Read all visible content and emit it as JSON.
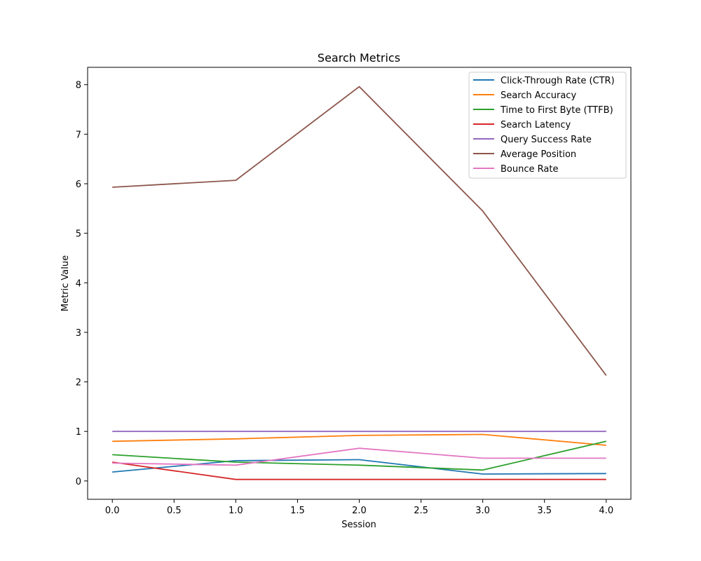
{
  "chart_data": {
    "type": "line",
    "title": "Search Metrics",
    "xlabel": "Session",
    "ylabel": "Metric Value",
    "x": [
      0,
      1,
      2,
      3,
      4
    ],
    "xlim": [
      -0.2,
      4.2
    ],
    "ylim": [
      -0.37,
      8.35
    ],
    "xticks": [
      0.0,
      0.5,
      1.0,
      1.5,
      2.0,
      2.5,
      3.0,
      3.5,
      4.0
    ],
    "xtick_labels": [
      "0.0",
      "0.5",
      "1.0",
      "1.5",
      "2.0",
      "2.5",
      "3.0",
      "3.5",
      "4.0"
    ],
    "yticks": [
      0,
      1,
      2,
      3,
      4,
      5,
      6,
      7,
      8
    ],
    "ytick_labels": [
      "0",
      "1",
      "2",
      "3",
      "4",
      "5",
      "6",
      "7",
      "8"
    ],
    "grid": false,
    "legend_position": "top-right",
    "series": [
      {
        "name": "Click-Through Rate (CTR)",
        "color": "#1f77b4",
        "values": [
          0.18,
          0.41,
          0.43,
          0.14,
          0.15
        ]
      },
      {
        "name": "Search Accuracy",
        "color": "#ff7f0e",
        "values": [
          0.8,
          0.85,
          0.92,
          0.94,
          0.72
        ]
      },
      {
        "name": "Time to First Byte (TTFB)",
        "color": "#2ca02c",
        "values": [
          0.53,
          0.38,
          0.32,
          0.22,
          0.8
        ]
      },
      {
        "name": "Search Latency",
        "color": "#d62728",
        "values": [
          0.38,
          0.03,
          0.03,
          0.03,
          0.03
        ]
      },
      {
        "name": "Query Success Rate",
        "color": "#9467bd",
        "values": [
          1.0,
          1.0,
          1.0,
          1.0,
          1.0
        ]
      },
      {
        "name": "Average Position",
        "color": "#8c564b",
        "values": [
          5.93,
          6.07,
          7.96,
          5.45,
          2.13
        ]
      },
      {
        "name": "Bounce Rate",
        "color": "#e377c2",
        "values": [
          0.36,
          0.32,
          0.66,
          0.46,
          0.46
        ]
      }
    ]
  }
}
